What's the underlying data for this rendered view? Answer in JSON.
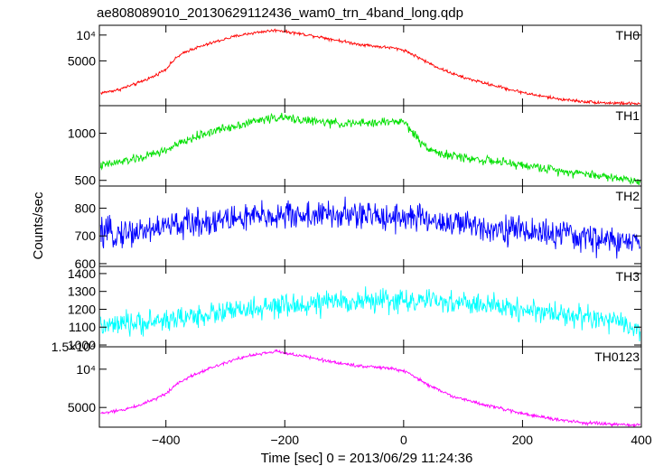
{
  "chart_data": {
    "type": "line",
    "title": "ae808089010_20130629112436_wam0_trn_4band_long.qdp",
    "xlabel": "Time [sec] 0 = 2013/06/29 11:24:36",
    "ylabel": "Counts/sec",
    "xlim": [
      -512,
      400
    ],
    "x_ticks": [
      {
        "value": -400,
        "label": "−400"
      },
      {
        "value": -200,
        "label": "−200"
      },
      {
        "value": 0,
        "label": "0"
      },
      {
        "value": 200,
        "label": "200"
      },
      {
        "value": 400,
        "label": "400"
      }
    ],
    "panels": [
      {
        "name": "TH0",
        "color": "#ff0000",
        "scale": "log",
        "ylim": [
          1500,
          13000
        ],
        "noise": 0.035,
        "y_ticks": [
          {
            "value": 5000,
            "label": "5000"
          },
          {
            "value": 10000,
            "label": "10⁴"
          }
        ],
        "x": [
          -510,
          -480,
          -450,
          -420,
          -400,
          -380,
          -360,
          -340,
          -320,
          -300,
          -280,
          -260,
          -240,
          -220,
          -210,
          -200,
          -180,
          -160,
          -140,
          -120,
          -100,
          -80,
          -60,
          -40,
          -20,
          0,
          20,
          40,
          60,
          80,
          100,
          140,
          180,
          220,
          260,
          300,
          340,
          380,
          400
        ],
        "values": [
          2100,
          2300,
          2700,
          3300,
          4000,
          5600,
          6700,
          7400,
          8200,
          9000,
          9800,
          10400,
          10900,
          11300,
          11400,
          11000,
          10500,
          10000,
          9500,
          8900,
          8400,
          7900,
          7600,
          7300,
          7100,
          6700,
          5700,
          4800,
          4100,
          3600,
          3200,
          2700,
          2300,
          2000,
          1800,
          1680,
          1620,
          1590,
          1580
        ]
      },
      {
        "name": "TH1",
        "color": "#00e000",
        "scale": "log",
        "ylim": [
          460,
          1500
        ],
        "noise": 0.055,
        "y_ticks": [
          {
            "value": 500,
            "label": "500"
          },
          {
            "value": 1000,
            "label": "1000"
          }
        ],
        "x": [
          -510,
          -480,
          -440,
          -400,
          -370,
          -340,
          -300,
          -260,
          -230,
          -210,
          -180,
          -140,
          -100,
          -60,
          -20,
          0,
          10,
          30,
          60,
          100,
          140,
          180,
          220,
          260,
          300,
          340,
          380,
          400
        ],
        "values": [
          620,
          650,
          700,
          780,
          880,
          980,
          1080,
          1170,
          1240,
          1260,
          1230,
          1180,
          1150,
          1160,
          1190,
          1190,
          1070,
          860,
          740,
          700,
          670,
          640,
          610,
          580,
          555,
          530,
          505,
          490
        ]
      },
      {
        "name": "TH2",
        "color": "#0000ff",
        "scale": "linear",
        "ylim": [
          590,
          880
        ],
        "noise": 45,
        "y_ticks": [
          {
            "value": 600,
            "label": "600"
          },
          {
            "value": 700,
            "label": "700"
          },
          {
            "value": 800,
            "label": "800"
          }
        ],
        "x": [
          -510,
          -450,
          -400,
          -300,
          -200,
          -100,
          0,
          50,
          100,
          200,
          300,
          400
        ],
        "values": [
          705,
          715,
          735,
          760,
          775,
          775,
          770,
          755,
          740,
          720,
          695,
          670
        ]
      },
      {
        "name": "TH3",
        "color": "#00ffff",
        "scale": "linear",
        "ylim": [
          990,
          1440
        ],
        "noise": 55,
        "y_ticks": [
          {
            "value": 1000,
            "label": "1000"
          },
          {
            "value": 1100,
            "label": "1100"
          },
          {
            "value": 1200,
            "label": "1200"
          },
          {
            "value": 1300,
            "label": "1300"
          },
          {
            "value": 1400,
            "label": "1400"
          }
        ],
        "x": [
          -510,
          -450,
          -400,
          -300,
          -200,
          -100,
          0,
          100,
          200,
          300,
          350,
          400
        ],
        "values": [
          1100,
          1120,
          1140,
          1185,
          1215,
          1245,
          1250,
          1235,
          1200,
          1160,
          1130,
          1085
        ]
      },
      {
        "name": "TH0123",
        "color": "#ff00ff",
        "scale": "log",
        "ylim": [
          3500,
          15000
        ],
        "noise": 0.025,
        "y_ticks": [
          {
            "value": 5000,
            "label": "5000"
          },
          {
            "value": 10000,
            "label": "10⁴"
          },
          {
            "value": 15000,
            "label": "1.5×10⁴"
          }
        ],
        "x": [
          -510,
          -480,
          -450,
          -420,
          -400,
          -380,
          -360,
          -340,
          -320,
          -300,
          -280,
          -260,
          -240,
          -220,
          -210,
          -200,
          -180,
          -160,
          -140,
          -120,
          -100,
          -80,
          -60,
          -40,
          -20,
          0,
          20,
          40,
          60,
          80,
          100,
          140,
          180,
          220,
          260,
          300,
          340,
          380,
          400
        ],
        "values": [
          4500,
          4700,
          5100,
          5800,
          6400,
          7800,
          8700,
          9600,
          10400,
          11300,
          12100,
          12700,
          13200,
          13700,
          13800,
          13400,
          12900,
          12400,
          11900,
          11400,
          11000,
          10700,
          10500,
          10300,
          10100,
          9700,
          8600,
          7600,
          6800,
          6200,
          5800,
          5200,
          4700,
          4300,
          4000,
          3800,
          3700,
          3650,
          3620
        ]
      }
    ]
  }
}
